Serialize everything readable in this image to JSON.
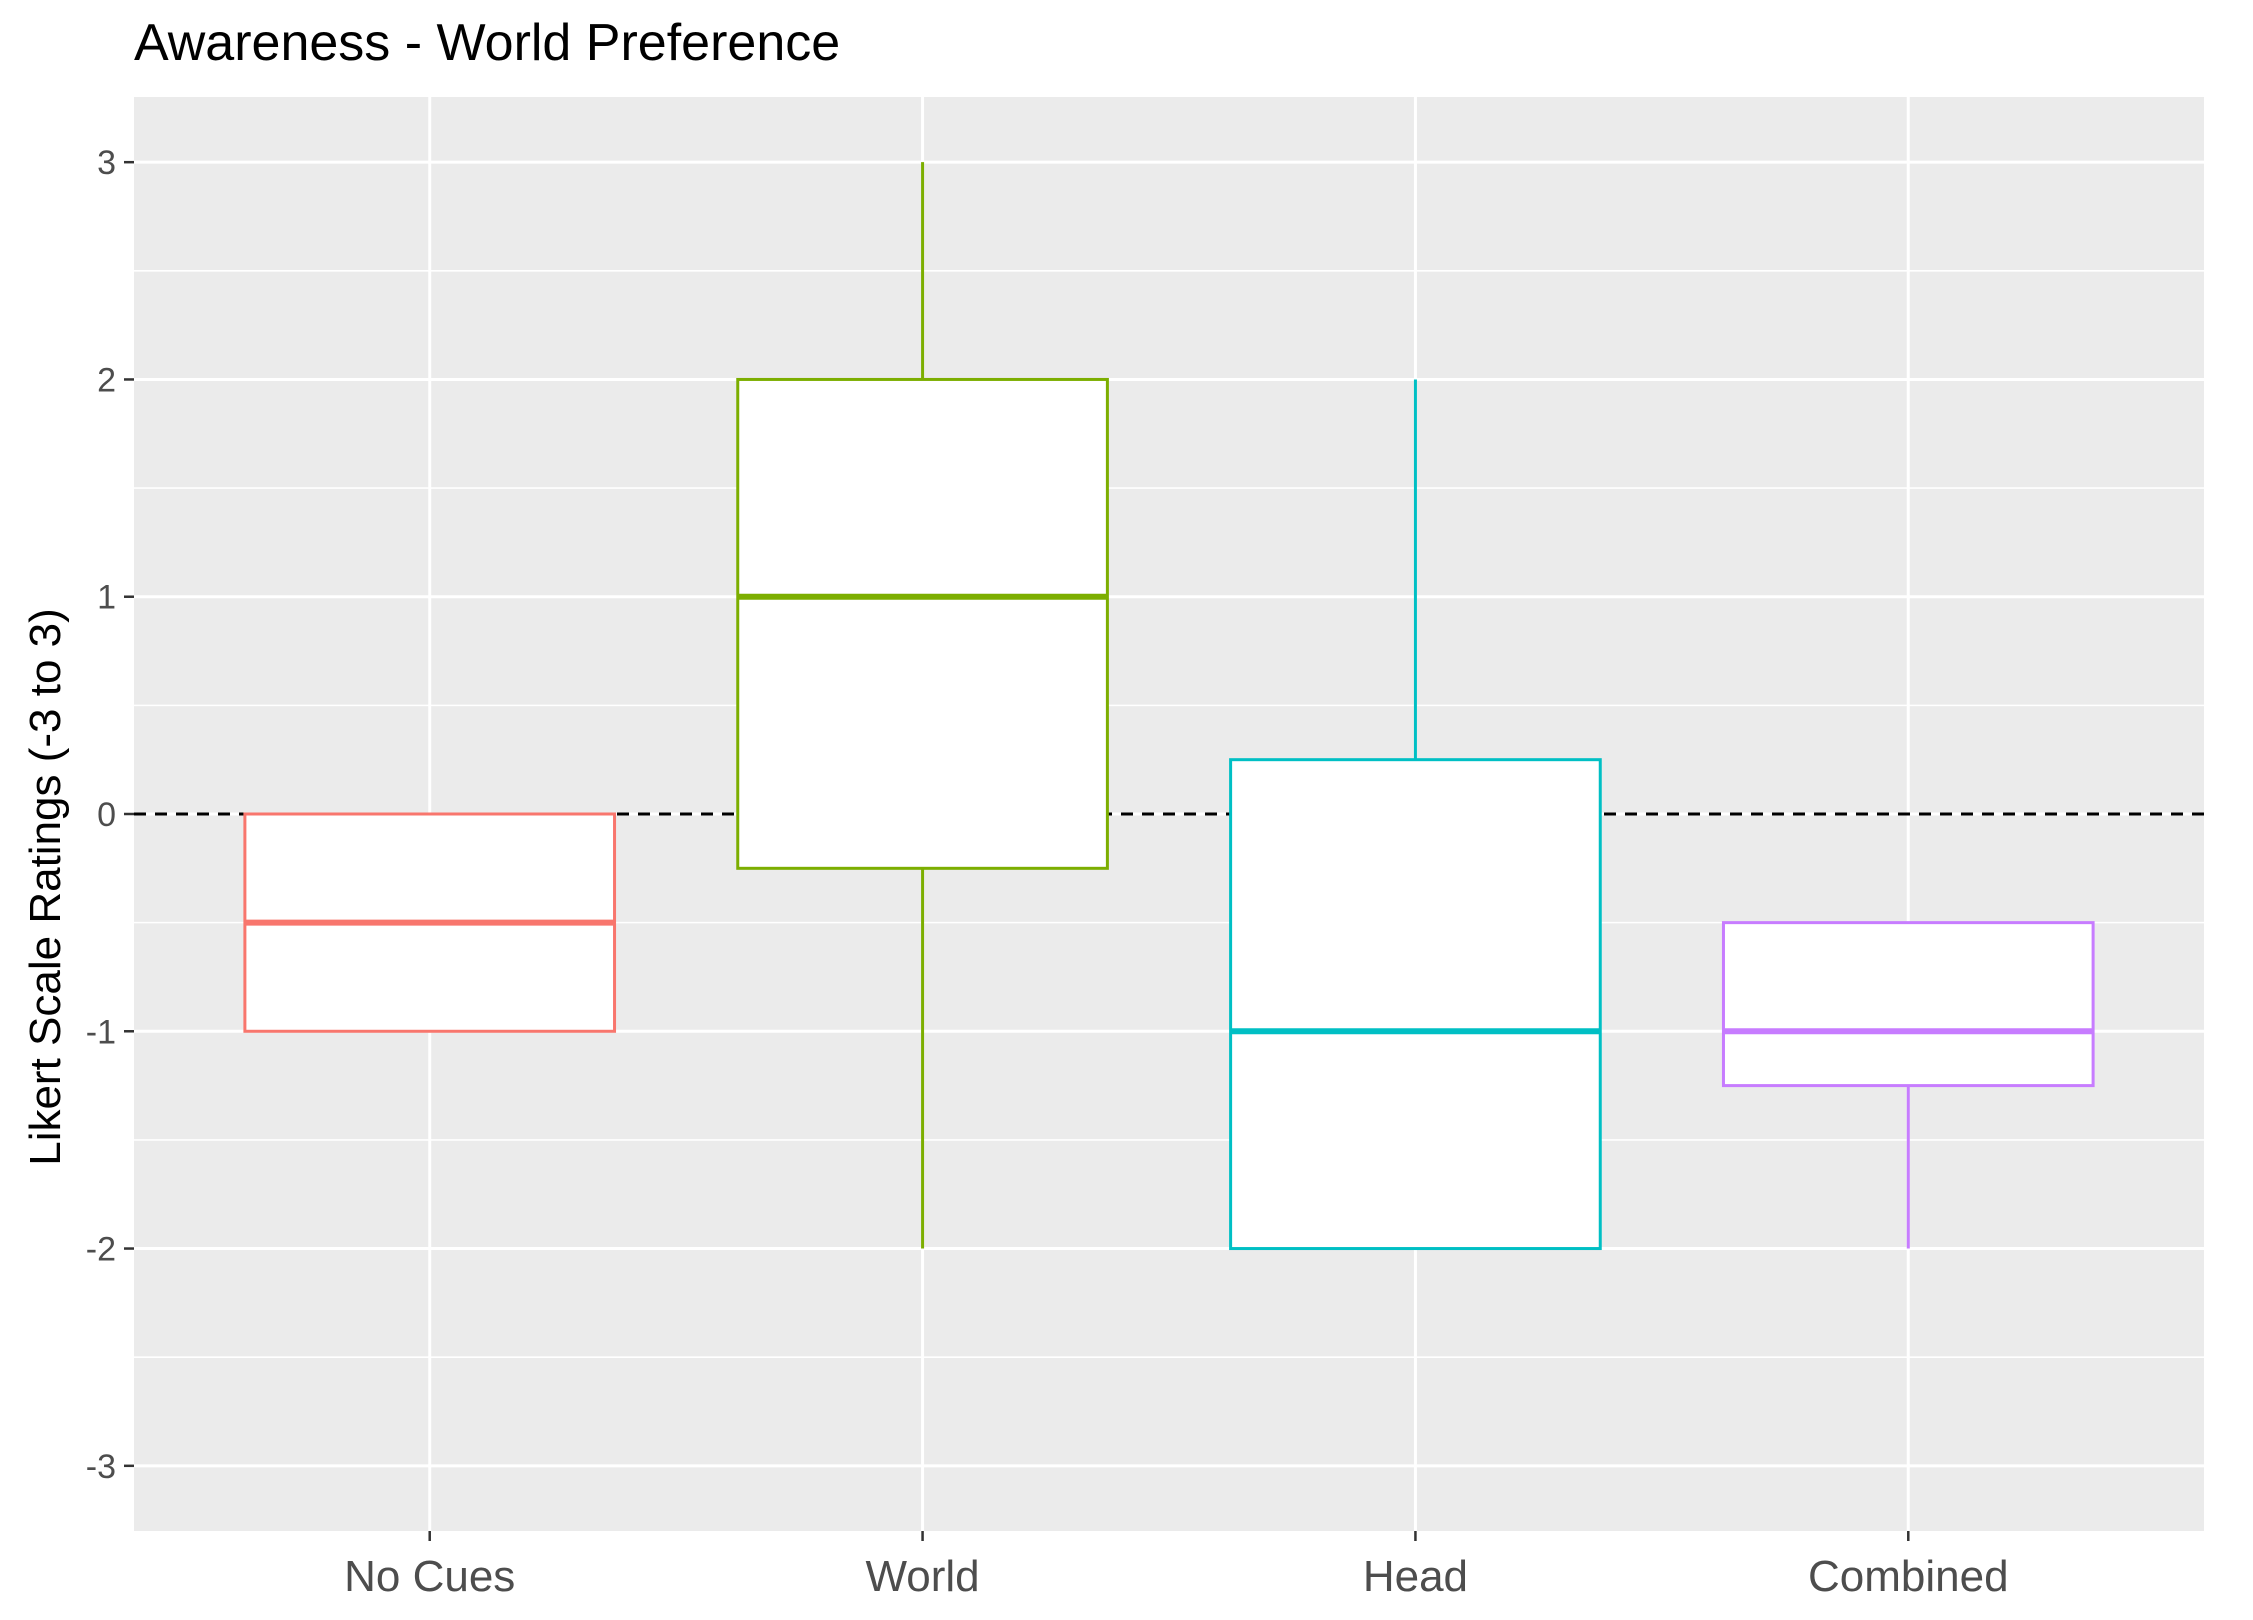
{
  "chart_data": {
    "type": "boxplot",
    "title": "Awareness - World Preference",
    "xlabel": "",
    "ylabel": "Likert Scale Ratings (-3 to 3)",
    "ylim": [
      -3.3,
      3.3
    ],
    "yticks": [
      "-3",
      "-2",
      "-1",
      "0",
      "1",
      "2",
      "3"
    ],
    "categories": [
      "No Cues",
      "World",
      "Head",
      "Combined"
    ],
    "colors": [
      "#F8766D",
      "#7CAE00",
      "#00BFC4",
      "#C77CFF"
    ],
    "reference_line": {
      "y": 0,
      "style": "dashed",
      "color": "#000000"
    },
    "grid": true,
    "legend": "none",
    "boxes": [
      {
        "category": "No Cues",
        "lower_whisker": -1,
        "q1": -1,
        "median": -0.5,
        "q3": 0,
        "upper_whisker": 0
      },
      {
        "category": "World",
        "lower_whisker": -2,
        "q1": -0.25,
        "median": 1,
        "q3": 2,
        "upper_whisker": 3
      },
      {
        "category": "Head",
        "lower_whisker": -2,
        "q1": -2,
        "median": -1,
        "q3": 0.25,
        "upper_whisker": 2
      },
      {
        "category": "Combined",
        "lower_whisker": -2,
        "q1": -1.25,
        "median": -1,
        "q3": -0.5,
        "upper_whisker": -0.5
      }
    ]
  }
}
